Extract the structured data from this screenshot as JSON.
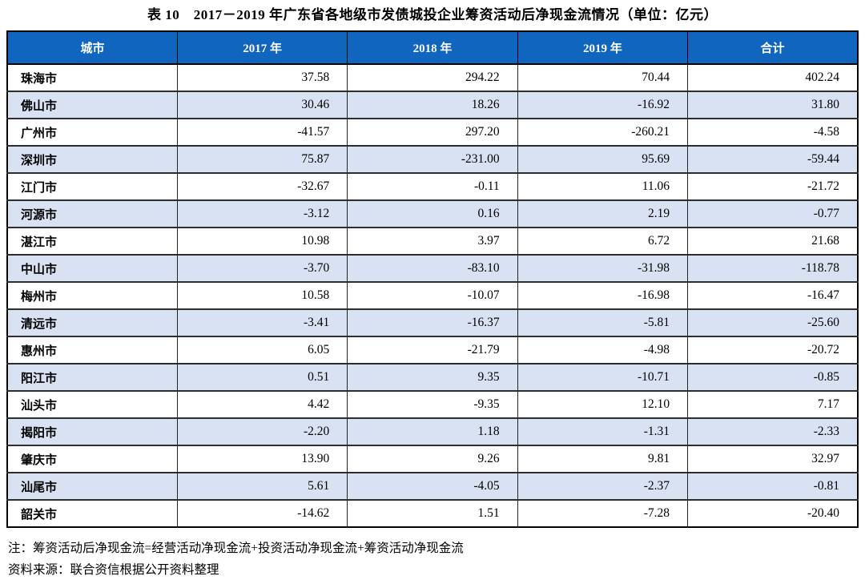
{
  "title": "表 10　2017－2019 年广东省各地级市发债城投企业筹资活动后净现金流情况（单位：亿元）",
  "colors": {
    "header_bg": "#1065BE",
    "header_text": "#FFFFFF",
    "row_alt_bg": "#D8E2F3",
    "row_bg": "#FFFFFF",
    "border_outer": "#000000",
    "border_row": "#2E2E2E"
  },
  "table": {
    "columns": [
      "城市",
      "2017 年",
      "2018 年",
      "2019 年",
      "合计"
    ],
    "rows": [
      {
        "city": "珠海市",
        "values": [
          "37.58",
          "294.22",
          "70.44",
          "402.24"
        ]
      },
      {
        "city": "佛山市",
        "values": [
          "30.46",
          "18.26",
          "-16.92",
          "31.80"
        ]
      },
      {
        "city": "广州市",
        "values": [
          "-41.57",
          "297.20",
          "-260.21",
          "-4.58"
        ]
      },
      {
        "city": "深圳市",
        "values": [
          "75.87",
          "-231.00",
          "95.69",
          "-59.44"
        ]
      },
      {
        "city": "江门市",
        "values": [
          "-32.67",
          "-0.11",
          "11.06",
          "-21.72"
        ]
      },
      {
        "city": "河源市",
        "values": [
          "-3.12",
          "0.16",
          "2.19",
          "-0.77"
        ]
      },
      {
        "city": "湛江市",
        "values": [
          "10.98",
          "3.97",
          "6.72",
          "21.68"
        ]
      },
      {
        "city": "中山市",
        "values": [
          "-3.70",
          "-83.10",
          "-31.98",
          "-118.78"
        ]
      },
      {
        "city": "梅州市",
        "values": [
          "10.58",
          "-10.07",
          "-16.98",
          "-16.47"
        ]
      },
      {
        "city": "清远市",
        "values": [
          "-3.41",
          "-16.37",
          "-5.81",
          "-25.60"
        ]
      },
      {
        "city": "惠州市",
        "values": [
          "6.05",
          "-21.79",
          "-4.98",
          "-20.72"
        ]
      },
      {
        "city": "阳江市",
        "values": [
          "0.51",
          "9.35",
          "-10.71",
          "-0.85"
        ]
      },
      {
        "city": "汕头市",
        "values": [
          "4.42",
          "-9.35",
          "12.10",
          "7.17"
        ]
      },
      {
        "city": "揭阳市",
        "values": [
          "-2.20",
          "1.18",
          "-1.31",
          "-2.33"
        ]
      },
      {
        "city": "肇庆市",
        "values": [
          "13.90",
          "9.26",
          "9.81",
          "32.97"
        ]
      },
      {
        "city": "汕尾市",
        "values": [
          "5.61",
          "-4.05",
          "-2.37",
          "-0.81"
        ]
      },
      {
        "city": "韶关市",
        "values": [
          "-14.62",
          "1.51",
          "-7.28",
          "-20.40"
        ]
      }
    ]
  },
  "notes": {
    "note": "注：筹资活动后净现金流=经营活动净现金流+投资活动净现金流+筹资活动净现金流",
    "source": "资料来源：联合资信根据公开资料整理"
  },
  "chart_data": {
    "type": "table",
    "title": "表 10　2017－2019 年广东省各地级市发债城投企业筹资活动后净现金流情况（单位：亿元）",
    "categories": [
      "珠海市",
      "佛山市",
      "广州市",
      "深圳市",
      "江门市",
      "河源市",
      "湛江市",
      "中山市",
      "梅州市",
      "清远市",
      "惠州市",
      "阳江市",
      "汕头市",
      "揭阳市",
      "肇庆市",
      "汕尾市",
      "韶关市"
    ],
    "series": [
      {
        "name": "2017 年",
        "values": [
          37.58,
          30.46,
          -41.57,
          75.87,
          -32.67,
          -3.12,
          10.98,
          -3.7,
          10.58,
          -3.41,
          6.05,
          0.51,
          4.42,
          -2.2,
          13.9,
          5.61,
          -14.62
        ]
      },
      {
        "name": "2018 年",
        "values": [
          294.22,
          18.26,
          297.2,
          -231.0,
          -0.11,
          0.16,
          3.97,
          -83.1,
          -10.07,
          -16.37,
          -21.79,
          9.35,
          -9.35,
          1.18,
          9.26,
          -4.05,
          1.51
        ]
      },
      {
        "name": "2019 年",
        "values": [
          70.44,
          -16.92,
          -260.21,
          95.69,
          11.06,
          2.19,
          6.72,
          -31.98,
          -16.98,
          -5.81,
          -4.98,
          -10.71,
          12.1,
          -1.31,
          9.81,
          -2.37,
          -7.28
        ]
      },
      {
        "name": "合计",
        "values": [
          402.24,
          31.8,
          -4.58,
          -59.44,
          -21.72,
          -0.77,
          21.68,
          -118.78,
          -16.47,
          -25.6,
          -20.72,
          -0.85,
          7.17,
          -2.33,
          32.97,
          -0.81,
          -20.4
        ]
      }
    ]
  }
}
